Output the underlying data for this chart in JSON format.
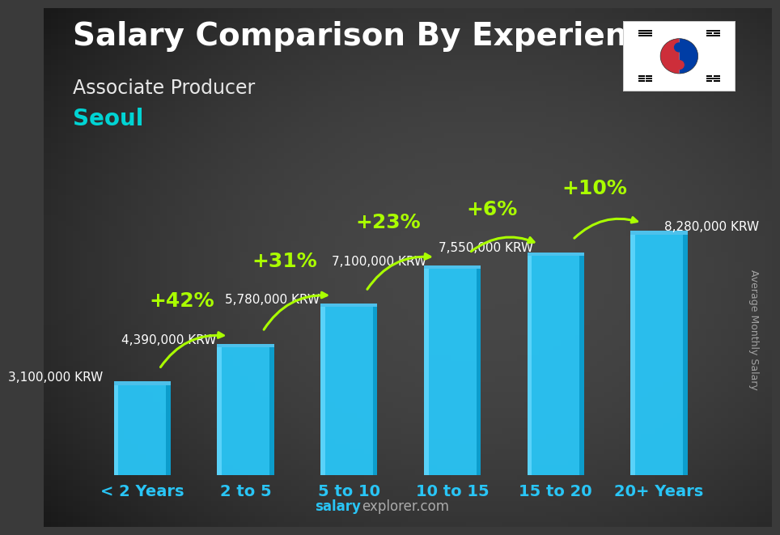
{
  "title": "Salary Comparison By Experience",
  "subtitle": "Associate Producer",
  "city": "Seoul",
  "ylabel": "Average Monthly Salary",
  "watermark_bold": "salary",
  "watermark_normal": "explorer.com",
  "categories": [
    "< 2 Years",
    "2 to 5",
    "5 to 10",
    "10 to 15",
    "15 to 20",
    "20+ Years"
  ],
  "values": [
    3100000,
    4390000,
    5780000,
    7100000,
    7550000,
    8280000
  ],
  "value_labels": [
    "3,100,000 KRW",
    "4,390,000 KRW",
    "5,780,000 KRW",
    "7,100,000 KRW",
    "7,550,000 KRW",
    "8,280,000 KRW"
  ],
  "pct_labels": [
    "+42%",
    "+31%",
    "+23%",
    "+6%",
    "+10%"
  ],
  "bar_color_main": "#29c5f6",
  "bar_color_light": "#6edcff",
  "bar_color_dark": "#0090c0",
  "bar_color_top": "#50d0ff",
  "bg_color": "#3a3a3a",
  "title_color": "#ffffff",
  "subtitle_color": "#e8e8e8",
  "city_color": "#00d4d4",
  "value_label_color": "#ffffff",
  "pct_color": "#aaff00",
  "arrow_color": "#aaff00",
  "cat_color": "#29c5f6",
  "watermark_bold_color": "#29c5f6",
  "watermark_normal_color": "#aaaaaa",
  "ylabel_color": "#bbbbbb",
  "title_fontsize": 28,
  "subtitle_fontsize": 17,
  "city_fontsize": 20,
  "value_label_fontsize": 11,
  "pct_fontsize": 18,
  "cat_fontsize": 14,
  "ylabel_fontsize": 9,
  "ylim_max": 10000000,
  "bar_width": 0.55
}
